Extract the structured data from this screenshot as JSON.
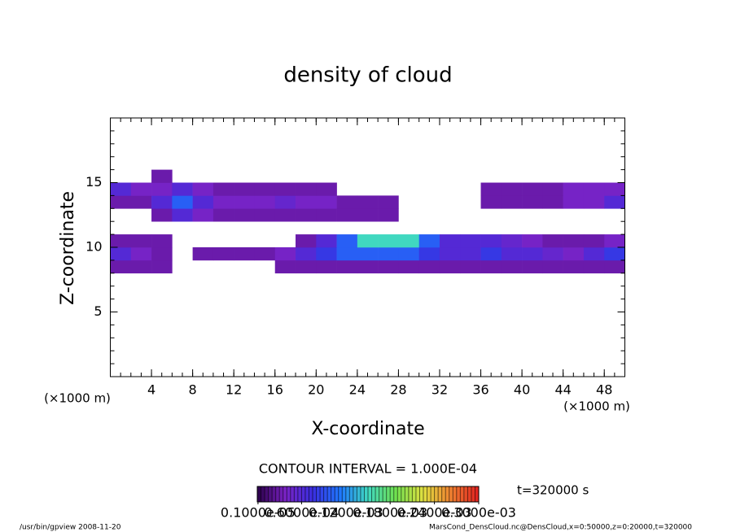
{
  "chart_data": {
    "type": "heatmap",
    "title": "density of cloud",
    "x_label": "X-coordinate",
    "y_label": "Z-coordinate",
    "x_unit": "(×1000 m)",
    "y_unit": "(×1000 m)",
    "xlim": [
      0,
      50
    ],
    "ylim": [
      0,
      20
    ],
    "xticks": [
      4,
      8,
      12,
      16,
      20,
      24,
      28,
      32,
      36,
      40,
      44,
      48
    ],
    "yticks": [
      5,
      10,
      15
    ],
    "x_edges": [
      0,
      2,
      4,
      6,
      8,
      10,
      12,
      14,
      16,
      18,
      20,
      22,
      24,
      26,
      28,
      30,
      32,
      34,
      36,
      38,
      40,
      42,
      44,
      46,
      48,
      50
    ],
    "z_edges": [
      8,
      9,
      10,
      11,
      12,
      13,
      14,
      15,
      16
    ],
    "values": [
      [
        3e-05,
        3e-05,
        3e-05,
        null,
        null,
        null,
        null,
        null,
        3e-05,
        3e-05,
        3e-05,
        3e-05,
        3e-05,
        3e-05,
        3e-05,
        3e-05,
        3e-05,
        3e-05,
        3e-05,
        3e-05,
        3e-05,
        3e-05,
        3e-05,
        3e-05,
        3e-05
      ],
      [
        6e-05,
        4e-05,
        3e-05,
        null,
        3e-05,
        3e-05,
        3e-05,
        3e-05,
        4e-05,
        6e-05,
        8e-05,
        0.0001,
        0.0001,
        0.0001,
        0.0001,
        8e-05,
        6e-05,
        6e-05,
        8e-05,
        6e-05,
        6e-05,
        5e-05,
        4e-05,
        6e-05,
        8e-05
      ],
      [
        3e-05,
        3e-05,
        3e-05,
        null,
        null,
        null,
        null,
        null,
        null,
        3e-05,
        6e-05,
        0.0001,
        0.00015,
        0.00015,
        0.00015,
        0.0001,
        6e-05,
        6e-05,
        6e-05,
        5e-05,
        4e-05,
        3e-05,
        3e-05,
        3e-05,
        4e-05
      ],
      [
        null,
        null,
        null,
        null,
        null,
        null,
        null,
        null,
        null,
        null,
        null,
        null,
        null,
        null,
        null,
        null,
        null,
        null,
        null,
        null,
        null,
        null,
        null,
        null,
        null
      ],
      [
        null,
        null,
        3e-05,
        6e-05,
        4e-05,
        3e-05,
        3e-05,
        3e-05,
        3e-05,
        3e-05,
        3e-05,
        3e-05,
        3e-05,
        3e-05,
        null,
        null,
        null,
        null,
        null,
        null,
        null,
        null,
        null,
        null,
        null
      ],
      [
        3e-05,
        3e-05,
        6e-05,
        0.0001,
        6e-05,
        4e-05,
        4e-05,
        4e-05,
        5e-05,
        4e-05,
        4e-05,
        3e-05,
        3e-05,
        3e-05,
        null,
        null,
        null,
        null,
        3e-05,
        3e-05,
        3e-05,
        3e-05,
        4e-05,
        4e-05,
        6e-05
      ],
      [
        6e-05,
        4e-05,
        4e-05,
        6e-05,
        4e-05,
        3e-05,
        3e-05,
        3e-05,
        3e-05,
        3e-05,
        3e-05,
        null,
        null,
        null,
        null,
        null,
        null,
        null,
        3e-05,
        3e-05,
        3e-05,
        3e-05,
        4e-05,
        4e-05,
        4e-05
      ],
      [
        null,
        null,
        3e-05,
        null,
        null,
        null,
        null,
        null,
        null,
        null,
        null,
        null,
        null,
        null,
        null,
        null,
        null,
        null,
        null,
        null,
        null,
        null,
        null,
        null,
        null
      ]
    ],
    "colormap": [
      "#2a0048",
      "#7a22c4",
      "#3a2ee0",
      "#1f78ff",
      "#40d8c0",
      "#70e050",
      "#e0e040",
      "#f08030",
      "#e02020"
    ],
    "clim": [
      0,
      0.0003
    ],
    "colorbar_ticks": [
      {
        "value": 1e-06,
        "label": "0.1000e-05"
      },
      {
        "value": 6e-05,
        "label": "0.6000e-04"
      },
      {
        "value": 0.00012,
        "label": "0.1200e-03"
      },
      {
        "value": 0.00018,
        "label": "0.1800e-03"
      },
      {
        "value": 0.00024,
        "label": "0.2400e-03"
      },
      {
        "value": 0.0003,
        "label": "0.3000e-03"
      }
    ],
    "contour_interval": "CONTOUR INTERVAL = 1.000E-04",
    "time_label": "t=320000 s",
    "footer_left": "/usr/bin/gpview  2008-11-20",
    "footer_right": "MarsCond_DensCloud.nc@DensCloud,x=0:50000,z=0:20000,t=320000"
  }
}
